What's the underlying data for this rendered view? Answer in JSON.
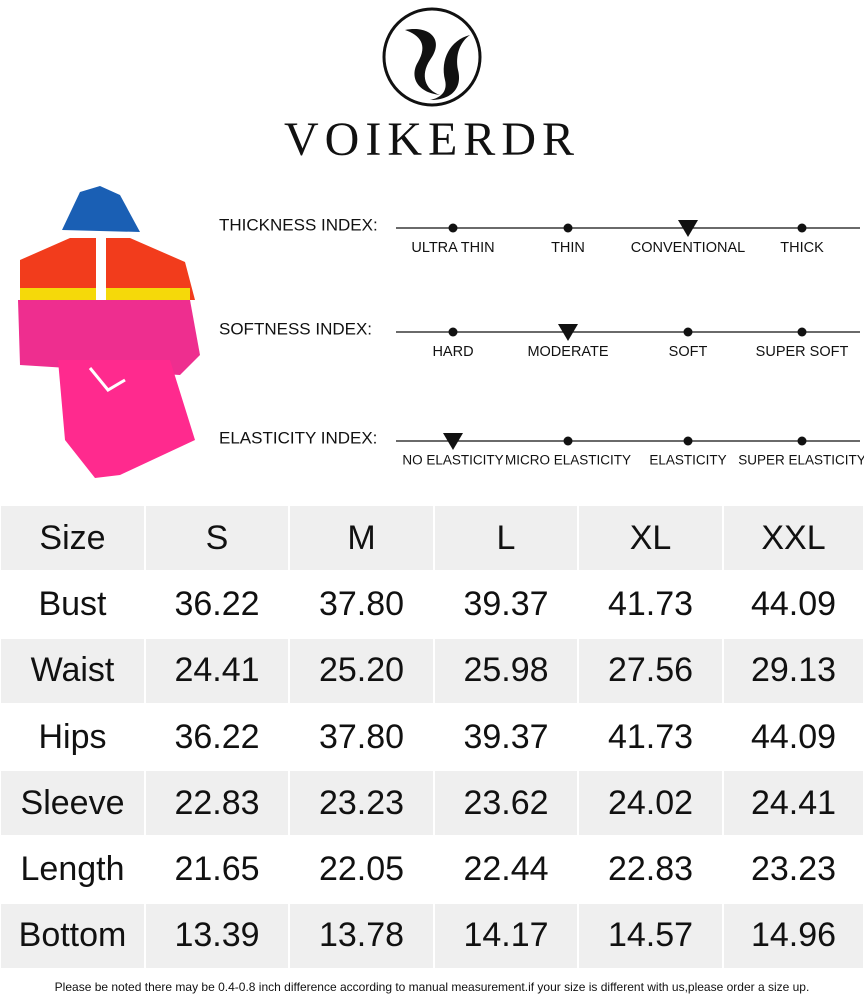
{
  "brand": {
    "name": "VOIKERDR"
  },
  "indices": [
    {
      "label": "THICKNESS INDEX:",
      "options": [
        "ULTRA THIN",
        "THIN",
        "CONVENTIONAL",
        "THICK"
      ],
      "selected": 2
    },
    {
      "label": "SOFTNESS INDEX:",
      "options": [
        "HARD",
        "MODERATE",
        "SOFT",
        "SUPER SOFT"
      ],
      "selected": 1
    },
    {
      "label": "ELASTICITY INDEX:",
      "options": [
        "NO ELASTICITY",
        "MICRO ELASTICITY",
        "ELASTICITY",
        "SUPER ELASTICITY"
      ],
      "selected": 0
    }
  ],
  "table": {
    "header": [
      "Size",
      "S",
      "M",
      "L",
      "XL",
      "XXL"
    ],
    "rows": [
      [
        "Bust",
        "36.22",
        "37.80",
        "39.37",
        "41.73",
        "44.09"
      ],
      [
        "Waist",
        "24.41",
        "25.20",
        "25.98",
        "27.56",
        "29.13"
      ],
      [
        "Hips",
        "36.22",
        "37.80",
        "39.37",
        "41.73",
        "44.09"
      ],
      [
        "Sleeve",
        "22.83",
        "23.23",
        "23.62",
        "24.02",
        "24.41"
      ],
      [
        "Length",
        "21.65",
        "22.05",
        "22.44",
        "22.83",
        "23.23"
      ],
      [
        "Bottom",
        "13.39",
        "13.78",
        "14.17",
        "14.57",
        "14.96"
      ]
    ]
  },
  "footnote": "Please be noted there may be 0.4-0.8 inch difference according to manual measurement.if your size is different with us,please order a size up."
}
